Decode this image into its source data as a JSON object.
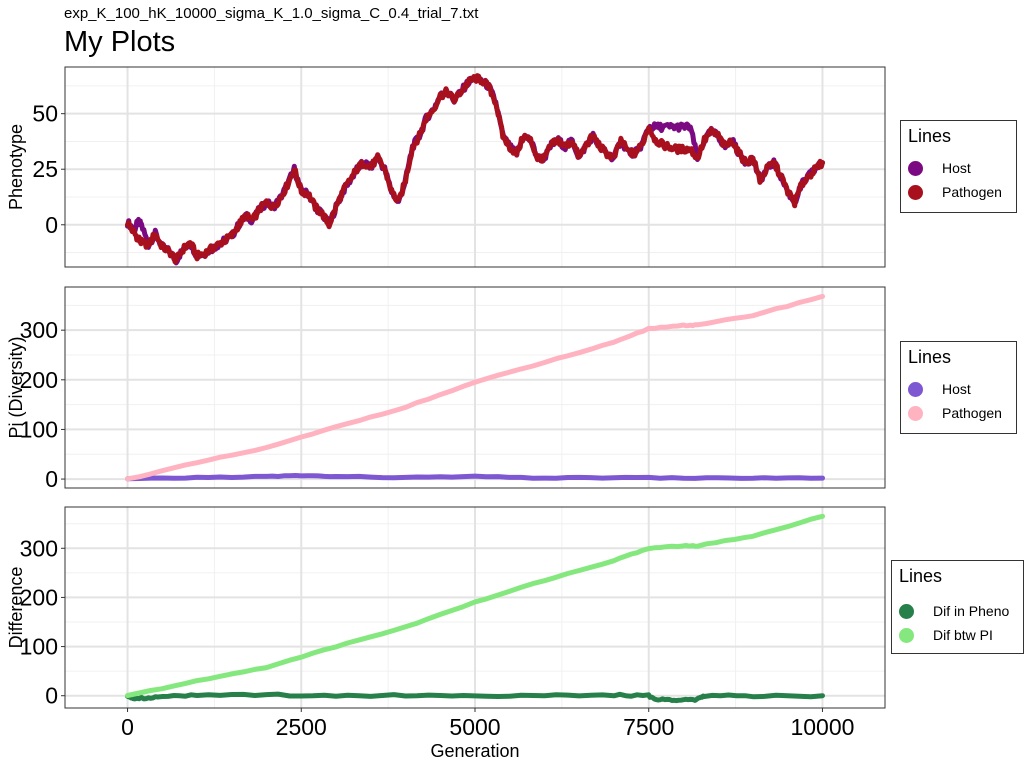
{
  "subtitle": "exp_K_100_hK_10000_sigma_K_1.0_sigma_C_0.4_trial_7.txt",
  "title": "My Plots",
  "xlabel": "Generation",
  "chart_data": [
    {
      "type": "line",
      "ylabel": "Phenotype",
      "xlim": [
        -900,
        10900
      ],
      "ylim": [
        -19,
        71
      ],
      "x_ticks": [
        0,
        2500,
        5000,
        7500,
        10000
      ],
      "y_ticks": [
        0,
        25,
        50
      ],
      "grid": true,
      "legend": {
        "position": "right",
        "title": "Lines"
      },
      "series": [
        {
          "name": "Host",
          "color": "#7B0A82",
          "x": [
            0,
            100,
            150,
            200,
            300,
            400,
            500,
            600,
            700,
            800,
            900,
            1000,
            1100,
            1200,
            1300,
            1400,
            1500,
            1600,
            1700,
            1800,
            1900,
            2000,
            2100,
            2200,
            2300,
            2400,
            2500,
            2600,
            2700,
            2800,
            2900,
            3000,
            3100,
            3200,
            3300,
            3400,
            3500,
            3600,
            3700,
            3800,
            3900,
            4000,
            4100,
            4200,
            4300,
            4400,
            4500,
            4600,
            4700,
            4800,
            4900,
            5000,
            5100,
            5200,
            5300,
            5400,
            5500,
            5600,
            5700,
            5800,
            5900,
            6000,
            6100,
            6200,
            6300,
            6400,
            6500,
            6600,
            6700,
            6800,
            6900,
            7000,
            7100,
            7200,
            7300,
            7400,
            7500,
            7600,
            7700,
            7800,
            7900,
            8000,
            8100,
            8200,
            8300,
            8400,
            8500,
            8600,
            8700,
            8800,
            8900,
            9000,
            9100,
            9200,
            9300,
            9400,
            9500,
            9600,
            9700,
            9800,
            9900,
            10000
          ],
          "values": [
            1,
            -2,
            1,
            0,
            -9,
            -4,
            -10,
            -12,
            -16,
            -11,
            -8,
            -14,
            -13,
            -11,
            -9,
            -7,
            -5,
            0,
            4,
            2,
            7,
            10,
            8,
            12,
            18,
            25,
            15,
            14,
            8,
            5,
            0,
            8,
            15,
            20,
            25,
            28,
            26,
            30,
            25,
            15,
            10,
            20,
            35,
            40,
            48,
            52,
            58,
            60,
            56,
            60,
            64,
            66,
            65,
            62,
            55,
            40,
            35,
            32,
            40,
            38,
            30,
            30,
            36,
            38,
            35,
            38,
            30,
            36,
            40,
            35,
            32,
            30,
            38,
            33,
            32,
            36,
            44,
            44,
            44,
            44,
            44,
            44,
            44,
            30,
            38,
            42,
            40,
            35,
            38,
            32,
            28,
            30,
            20,
            25,
            28,
            22,
            15,
            10,
            18,
            22,
            25,
            28
          ]
        },
        {
          "name": "Pathogen",
          "color": "#A8101E",
          "x": [
            0,
            100,
            150,
            200,
            300,
            400,
            500,
            600,
            700,
            800,
            900,
            1000,
            1100,
            1200,
            1300,
            1400,
            1500,
            1600,
            1700,
            1800,
            1900,
            2000,
            2100,
            2200,
            2300,
            2400,
            2500,
            2600,
            2700,
            2800,
            2900,
            3000,
            3100,
            3200,
            3300,
            3400,
            3500,
            3600,
            3700,
            3800,
            3900,
            4000,
            4100,
            4200,
            4300,
            4400,
            4500,
            4600,
            4700,
            4800,
            4900,
            5000,
            5100,
            5200,
            5300,
            5400,
            5500,
            5600,
            5700,
            5800,
            5900,
            6000,
            6100,
            6200,
            6300,
            6400,
            6500,
            6600,
            6700,
            6800,
            6900,
            7000,
            7100,
            7200,
            7300,
            7400,
            7500,
            7600,
            7700,
            7800,
            7900,
            8000,
            8100,
            8200,
            8300,
            8400,
            8500,
            8600,
            8700,
            8800,
            8900,
            9000,
            9100,
            9200,
            9300,
            9400,
            9500,
            9600,
            9700,
            9800,
            9900,
            10000
          ],
          "values": [
            1,
            -4,
            -6,
            -8,
            -9,
            -4,
            -10,
            -12,
            -16,
            -11,
            -8,
            -14,
            -13,
            -11,
            -9,
            -7,
            -5,
            0,
            4,
            2,
            7,
            10,
            8,
            12,
            18,
            25,
            15,
            14,
            8,
            5,
            0,
            8,
            15,
            20,
            25,
            28,
            26,
            30,
            25,
            15,
            10,
            20,
            35,
            40,
            48,
            52,
            58,
            60,
            56,
            60,
            64,
            66,
            65,
            62,
            55,
            40,
            35,
            32,
            40,
            38,
            30,
            30,
            36,
            38,
            35,
            38,
            30,
            36,
            40,
            35,
            32,
            30,
            38,
            33,
            32,
            36,
            44,
            38,
            36,
            35,
            34,
            34,
            34,
            30,
            38,
            42,
            40,
            35,
            38,
            32,
            28,
            30,
            20,
            25,
            28,
            22,
            15,
            10,
            18,
            22,
            25,
            28
          ]
        }
      ]
    },
    {
      "type": "line",
      "ylabel": "Pi (Diversity)",
      "xlim": [
        -900,
        10900
      ],
      "ylim": [
        -18,
        387
      ],
      "x_ticks": [
        0,
        2500,
        5000,
        7500,
        10000
      ],
      "y_ticks": [
        0,
        100,
        200,
        300
      ],
      "grid": true,
      "legend": {
        "position": "right",
        "title": "Lines"
      },
      "series": [
        {
          "name": "Host",
          "color": "#7E57D3",
          "x": [
            0,
            1000,
            2000,
            2500,
            3000,
            4000,
            5000,
            6000,
            7000,
            8000,
            9000,
            10000
          ],
          "values": [
            0,
            3,
            5,
            7,
            5,
            3,
            5,
            2,
            3,
            2,
            2,
            2
          ]
        },
        {
          "name": "Pathogen",
          "color": "#FFB3C1",
          "x": [
            0,
            1000,
            2000,
            3000,
            4000,
            5000,
            6000,
            7000,
            7500,
            8000,
            8200,
            9000,
            10000
          ],
          "values": [
            0,
            33,
            63,
            105,
            145,
            195,
            235,
            275,
            303,
            310,
            310,
            330,
            368
          ]
        }
      ]
    },
    {
      "type": "line",
      "ylabel": "Difference",
      "xlim": [
        -900,
        10900
      ],
      "ylim": [
        -25,
        384
      ],
      "x_ticks": [
        0,
        2500,
        5000,
        7500,
        10000
      ],
      "y_ticks": [
        0,
        100,
        200,
        300
      ],
      "grid": true,
      "legend": {
        "position": "right",
        "title": "Lines"
      },
      "series": [
        {
          "name": "Dif in Pheno",
          "color": "#27804A",
          "x": [
            0,
            100,
            300,
            500,
            1000,
            2000,
            3000,
            4000,
            5000,
            6000,
            7000,
            7500,
            7600,
            7800,
            8000,
            8200,
            8300,
            9000,
            10000
          ],
          "values": [
            0,
            -5,
            -5,
            0,
            0,
            2,
            0,
            1,
            0,
            0,
            1,
            0,
            -8,
            -8,
            -8,
            -8,
            0,
            0,
            0
          ]
        },
        {
          "name": "Dif btw PI",
          "color": "#85E87E",
          "x": [
            0,
            1000,
            2000,
            3000,
            4000,
            5000,
            6000,
            7000,
            7500,
            8000,
            8200,
            9000,
            10000
          ],
          "values": [
            0,
            30,
            58,
            100,
            140,
            190,
            235,
            275,
            300,
            305,
            305,
            325,
            365
          ]
        }
      ]
    }
  ]
}
